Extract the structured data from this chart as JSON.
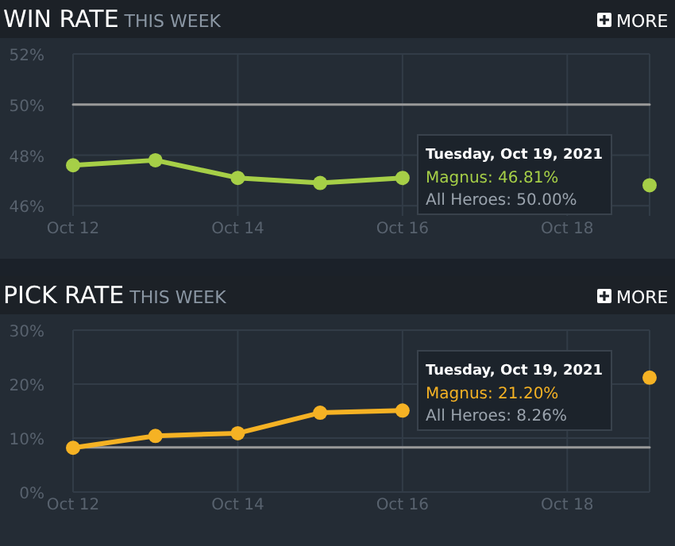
{
  "chart_data": [
    {
      "type": "line",
      "title": "WIN RATE",
      "subtitle": "THIS WEEK",
      "x": [
        "2021-10-12",
        "2021-10-13",
        "2021-10-14",
        "2021-10-15",
        "2021-10-16",
        "2021-10-17",
        "2021-10-18",
        "2021-10-19"
      ],
      "series": [
        {
          "name": "Magnus",
          "color": "#a6cf47",
          "marker": "circle",
          "values": [
            47.6,
            47.8,
            47.1,
            46.9,
            47.1,
            null,
            null,
            46.81
          ]
        },
        {
          "name": "All Heroes",
          "color": "#9a9a9a",
          "marker": "none",
          "values": [
            50,
            50,
            50,
            50,
            50,
            50,
            50,
            50
          ]
        }
      ],
      "xlim": [
        "2021-10-12",
        "2021-10-19"
      ],
      "xticks": [
        {
          "value": "2021-10-12",
          "label": "Oct 12"
        },
        {
          "value": "2021-10-14",
          "label": "Oct 14"
        },
        {
          "value": "2021-10-16",
          "label": "Oct 16"
        },
        {
          "value": "2021-10-18",
          "label": "Oct 18"
        }
      ],
      "ylim": [
        45.6,
        52
      ],
      "yticks": [
        {
          "value": 46,
          "label": "46%"
        },
        {
          "value": 48,
          "label": "48%"
        },
        {
          "value": 50,
          "label": "50%"
        },
        {
          "value": 52,
          "label": "52%"
        }
      ],
      "grid": true,
      "annotations": [
        "Tuesday, Oct 19, 2021",
        ": 46.81%",
        ": 50.00%",
        "MORE"
      ]
    },
    {
      "type": "line",
      "title": "PICK RATE",
      "subtitle": "THIS WEEK",
      "x": [
        "2021-10-12",
        "2021-10-13",
        "2021-10-14",
        "2021-10-15",
        "2021-10-16",
        "2021-10-17",
        "2021-10-18",
        "2021-10-19"
      ],
      "series": [
        {
          "name": "Magnus",
          "color": "#f5b224",
          "marker": "circle",
          "values": [
            8.2,
            10.4,
            10.9,
            14.7,
            15.1,
            null,
            null,
            21.2
          ]
        },
        {
          "name": "All Heroes",
          "color": "#9a9a9a",
          "marker": "none",
          "values": [
            8.26,
            8.26,
            8.26,
            8.26,
            8.26,
            8.26,
            8.26,
            8.26
          ]
        }
      ],
      "xlim": [
        "2021-10-12",
        "2021-10-19"
      ],
      "xticks": [
        {
          "value": "2021-10-12",
          "label": "Oct 12"
        },
        {
          "value": "2021-10-14",
          "label": "Oct 14"
        },
        {
          "value": "2021-10-16",
          "label": "Oct 16"
        },
        {
          "value": "2021-10-18",
          "label": "Oct 18"
        }
      ],
      "ylim": [
        0,
        30
      ],
      "yticks": [
        {
          "value": 0,
          "label": "0%"
        },
        {
          "value": 10,
          "label": "10%"
        },
        {
          "value": 20,
          "label": "20%"
        },
        {
          "value": 30,
          "label": "30%"
        }
      ],
      "grid": true,
      "annotations": [
        "Tuesday, Oct 19, 2021",
        ": 21.20%",
        ": 8.26%",
        "MORE"
      ]
    }
  ]
}
